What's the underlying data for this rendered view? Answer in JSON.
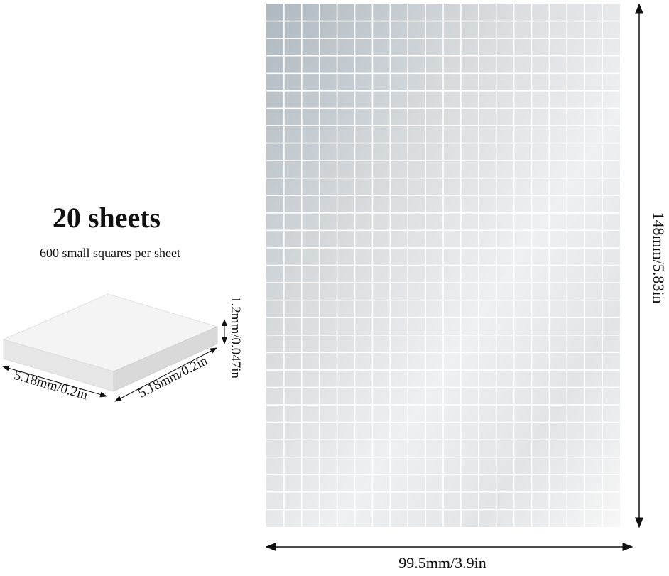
{
  "heading": {
    "title": "20 sheets",
    "subtitle": "600 small squares per sheet"
  },
  "tile": {
    "thickness": "1.2mm/0.047in",
    "length": "5.18mm/0.2in",
    "width": "5.18mm/0.2in"
  },
  "sheet": {
    "height": "148mm/5.83in",
    "width": "99.5mm/3.9in"
  }
}
